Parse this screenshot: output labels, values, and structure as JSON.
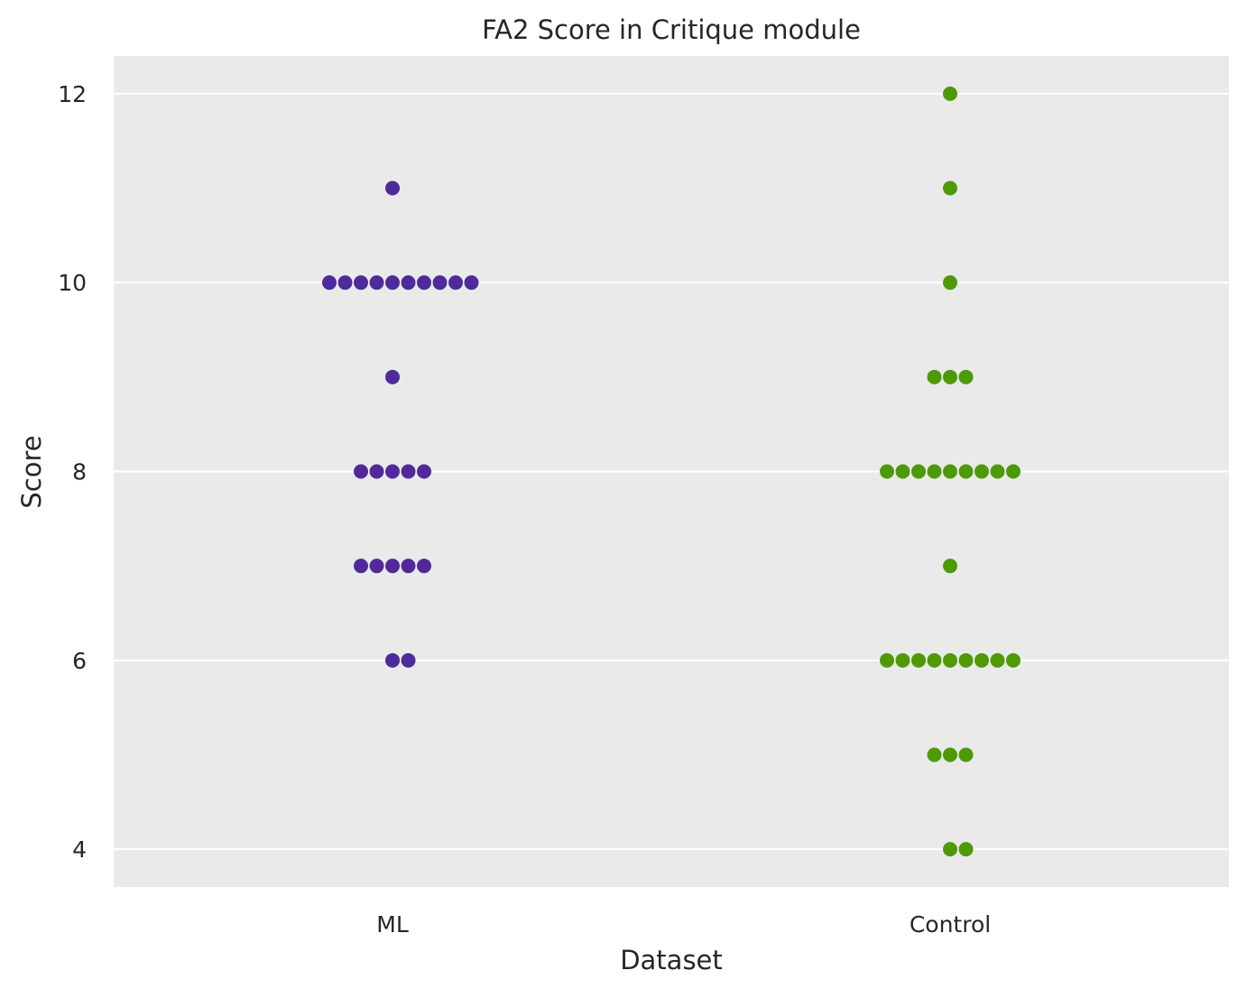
{
  "chart_data": {
    "type": "scatter",
    "subtype": "swarm",
    "title": "FA2 Score in Critique module",
    "xlabel": "Dataset",
    "ylabel": "Score",
    "categories": [
      "ML",
      "Control"
    ],
    "ylim": [
      3.6,
      12.4
    ],
    "yticks": [
      4,
      6,
      8,
      10,
      12
    ],
    "grid": true,
    "background": "#eaeaea",
    "grid_color": "#ffffff",
    "series": [
      {
        "category": "ML",
        "color": "#4f2a9a",
        "values": [
          11,
          10,
          10,
          10,
          10,
          10,
          10,
          10,
          10,
          10,
          10,
          9,
          8,
          8,
          8,
          8,
          8,
          7,
          7,
          7,
          7,
          7,
          6,
          6
        ]
      },
      {
        "category": "Control",
        "color": "#4e9a06",
        "values": [
          12,
          11,
          10,
          9,
          9,
          9,
          8,
          8,
          8,
          8,
          8,
          8,
          8,
          8,
          8,
          7,
          6,
          6,
          6,
          6,
          6,
          6,
          6,
          6,
          6,
          5,
          5,
          5,
          4,
          4
        ]
      }
    ]
  }
}
